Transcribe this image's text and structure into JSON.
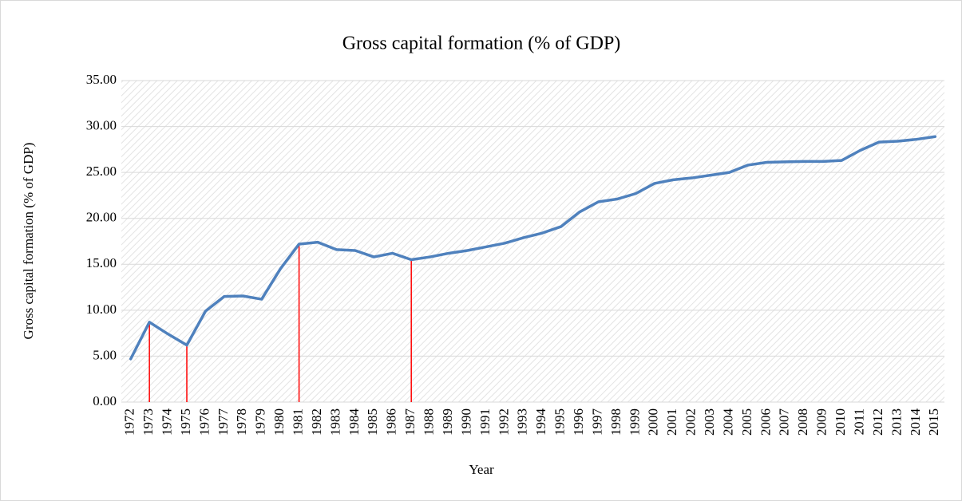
{
  "chart_data": {
    "type": "line",
    "title": "Gross capital formation (% of GDP)",
    "x_label": "Year",
    "y_label": "Gross capital formation (% of GDP)",
    "categories": [
      "1972",
      "1973",
      "1974",
      "1975",
      "1976",
      "1977",
      "1978",
      "1979",
      "1980",
      "1981",
      "1982",
      "1983",
      "1984",
      "1985",
      "1986",
      "1987",
      "1988",
      "1989",
      "1990",
      "1991",
      "1992",
      "1993",
      "1994",
      "1995",
      "1996",
      "1997",
      "1998",
      "1999",
      "2000",
      "2001",
      "2002",
      "2003",
      "2004",
      "2005",
      "2006",
      "2007",
      "2008",
      "2009",
      "2010",
      "2011",
      "2012",
      "2013",
      "2014",
      "2015"
    ],
    "series": [
      {
        "name": "Gross capital formation (% of GDP)",
        "color": "#4f81bd",
        "values": [
          4.7,
          8.7,
          7.4,
          6.2,
          9.9,
          11.5,
          11.55,
          11.2,
          14.5,
          17.2,
          17.4,
          16.6,
          16.5,
          15.8,
          16.2,
          15.5,
          15.8,
          16.2,
          16.5,
          16.9,
          17.3,
          17.9,
          18.4,
          19.1,
          20.7,
          21.8,
          22.1,
          22.7,
          23.8,
          24.2,
          24.4,
          24.7,
          25.0,
          25.8,
          26.1,
          26.15,
          26.2,
          26.2,
          26.3,
          27.4,
          28.3,
          28.4,
          28.6,
          28.9
        ]
      }
    ],
    "highlight_categories": [
      "1973",
      "1975",
      "1981",
      "1987"
    ],
    "highlight_color": "#ff0000",
    "ylim": [
      0,
      35
    ],
    "yticks": [
      {
        "value": 0,
        "label": "0.00"
      },
      {
        "value": 5,
        "label": "5.00"
      },
      {
        "value": 10,
        "label": "10.00"
      },
      {
        "value": 15,
        "label": "15.00"
      },
      {
        "value": 20,
        "label": "20.00"
      },
      {
        "value": 25,
        "label": "25.00"
      },
      {
        "value": 30,
        "label": "30.00"
      },
      {
        "value": 35,
        "label": "35.00"
      }
    ],
    "grid": true
  }
}
